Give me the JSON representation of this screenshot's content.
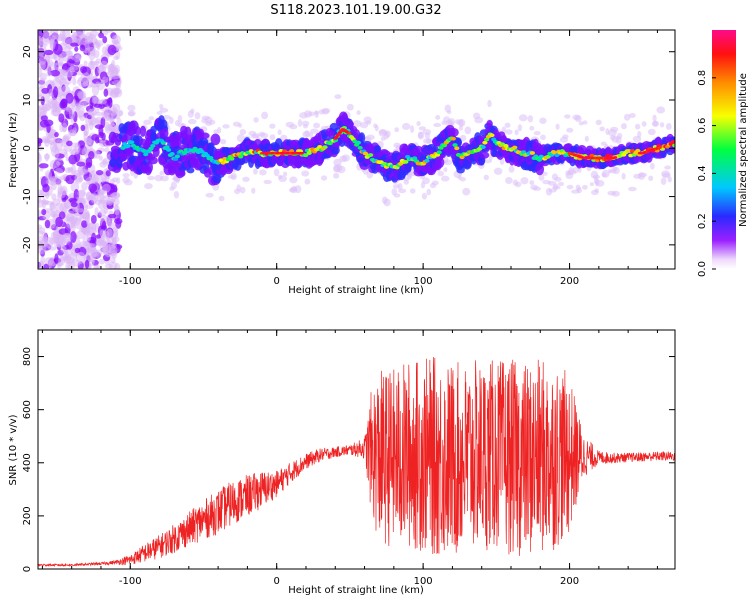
{
  "figure": {
    "title": "S118.2023.101.19.00.G32"
  },
  "chart_data": [
    {
      "type": "heatmap",
      "xlabel": "Height of straight line (km)",
      "ylabel": "Frequency (Hz)",
      "xlim": [
        -163,
        272
      ],
      "ylim": [
        -25,
        24.5
      ],
      "xticks": [
        -100,
        0,
        100,
        200
      ],
      "yticks": [
        -20,
        -10,
        0,
        10,
        20
      ],
      "colorbar": {
        "label": "Normalized spectral amplitude",
        "ticks": [
          "0.0",
          "0.2",
          "0.4",
          "0.6",
          "0.8"
        ],
        "range": [
          0,
          1
        ],
        "colormap": [
          "#ffffff",
          "#e8c8f8",
          "#8800ff",
          "#2222ff",
          "#00ccff",
          "#00ff44",
          "#ffff00",
          "#ff8800",
          "#ff0000",
          "#ff0088"
        ]
      },
      "ridge": {
        "x": [
          -110,
          -100,
          -90,
          -80,
          -70,
          -60,
          -50,
          -40,
          -30,
          -20,
          -10,
          0,
          10,
          20,
          30,
          40,
          45,
          50,
          55,
          60,
          65,
          70,
          80,
          90,
          100,
          110,
          115,
          120,
          125,
          130,
          140,
          145,
          150,
          160,
          170,
          180,
          190,
          200,
          210,
          220,
          230,
          240,
          250,
          260,
          272
        ],
        "y": [
          0,
          1,
          -1,
          2,
          -2,
          0,
          -1,
          -3,
          -2,
          -1,
          -1,
          -1,
          -1,
          -1,
          0,
          2,
          4,
          3,
          1,
          -1,
          -2,
          -3,
          -4,
          -2,
          -3,
          -1,
          1,
          2,
          -2,
          -1,
          0,
          3,
          1,
          0,
          -1,
          -2,
          -1,
          -1,
          -2,
          -2,
          -2,
          -1,
          -1,
          0,
          1
        ]
      }
    },
    {
      "type": "line",
      "xlabel": "Height of straight line (km)",
      "ylabel": "SNR (10 * v/v)",
      "xlim": [
        -163,
        272
      ],
      "ylim": [
        0,
        900
      ],
      "xticks": [
        -100,
        0,
        100,
        200
      ],
      "yticks": [
        0,
        200,
        400,
        600,
        800
      ],
      "color": "#ee2222",
      "envelope": {
        "x": [
          -163,
          -140,
          -120,
          -110,
          -100,
          -90,
          -80,
          -70,
          -60,
          -50,
          -40,
          -30,
          -20,
          -10,
          0,
          10,
          20,
          30,
          40,
          50,
          60,
          65,
          70,
          80,
          90,
          100,
          110,
          120,
          130,
          140,
          150,
          160,
          170,
          180,
          190,
          200,
          210,
          220,
          230,
          240,
          250,
          260,
          272
        ],
        "y": [
          15,
          15,
          20,
          25,
          35,
          60,
          85,
          115,
          150,
          185,
          215,
          250,
          275,
          300,
          320,
          365,
          405,
          430,
          440,
          448,
          455,
          440,
          420,
          420,
          430,
          430,
          420,
          410,
          420,
          430,
          430,
          420,
          410,
          420,
          430,
          430,
          425,
          420,
          418,
          420,
          422,
          425,
          425
        ],
        "noise": [
          4,
          4,
          5,
          8,
          20,
          35,
          45,
          55,
          65,
          75,
          85,
          85,
          80,
          70,
          50,
          40,
          30,
          25,
          20,
          20,
          40,
          250,
          330,
          340,
          360,
          370,
          380,
          370,
          360,
          360,
          360,
          370,
          370,
          370,
          360,
          300,
          80,
          25,
          20,
          18,
          18,
          18,
          18
        ]
      }
    }
  ]
}
